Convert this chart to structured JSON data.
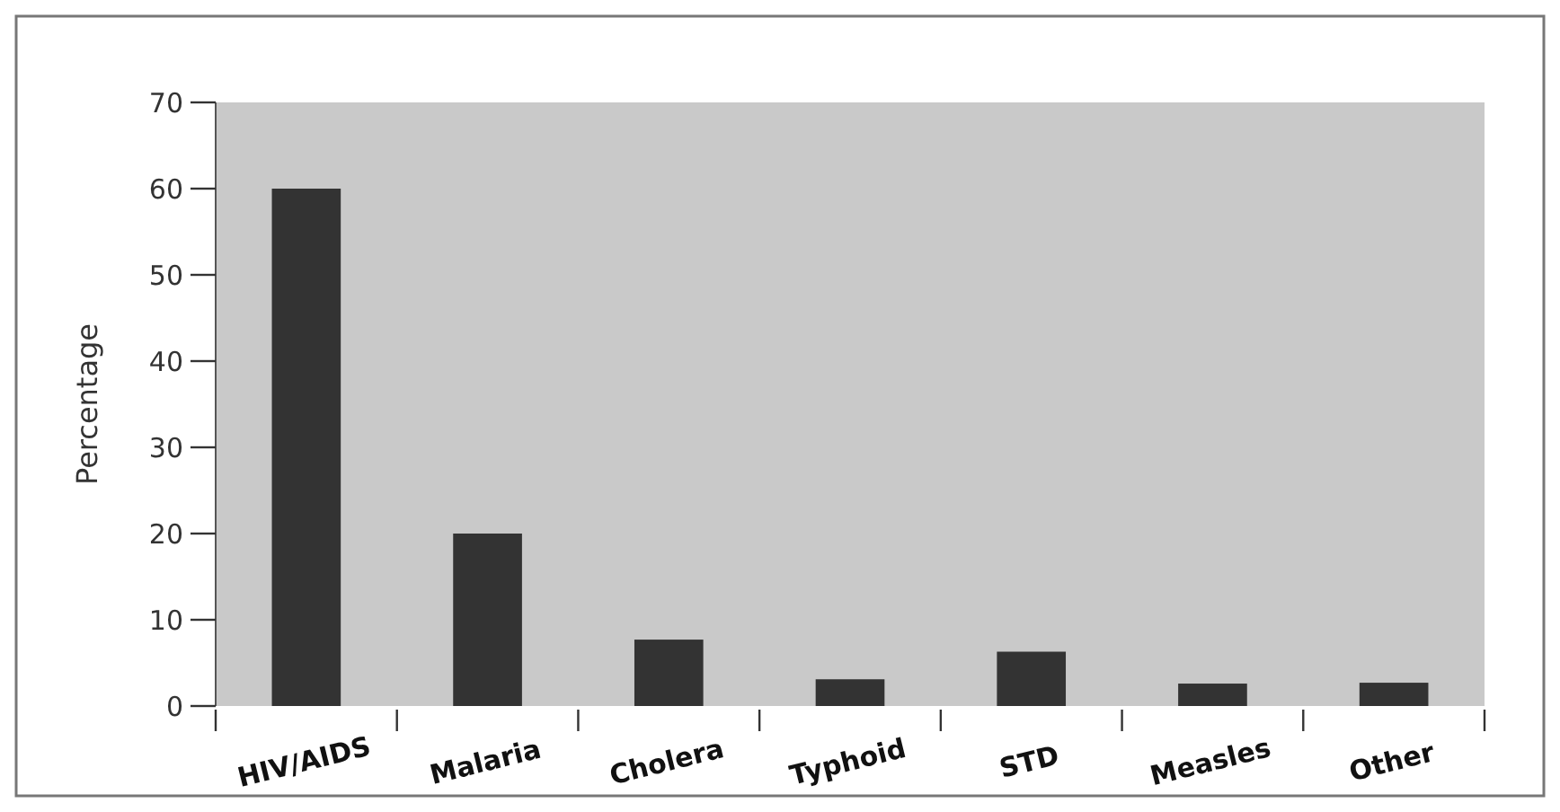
{
  "chart_data": {
    "type": "bar",
    "ylabel": "Percentage",
    "categories": [
      "HIV/AIDS",
      "Malaria",
      "Cholera",
      "Typhoid",
      "STD",
      "Measles",
      "Other"
    ],
    "values": [
      60,
      20,
      7.7,
      3.1,
      6.3,
      2.6,
      2.7
    ],
    "color": "#333333",
    "ylim": [
      0,
      70
    ],
    "yticks": [
      0,
      10,
      20,
      30,
      40,
      50,
      60,
      70
    ],
    "grid": false
  }
}
